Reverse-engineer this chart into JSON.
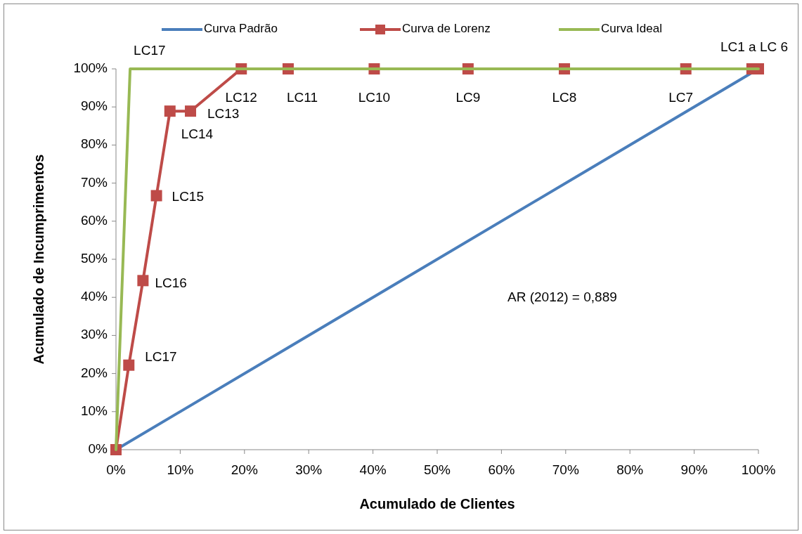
{
  "chart_data": {
    "type": "line",
    "xlabel": "Acumulado de Clientes",
    "ylabel": "Acumulado de Incumprimentos",
    "xlim": [
      0,
      100
    ],
    "ylim": [
      0,
      100
    ],
    "xticks": [
      {
        "value": 0,
        "label": "0%"
      },
      {
        "value": 10,
        "label": "10%"
      },
      {
        "value": 20,
        "label": "20%"
      },
      {
        "value": 30,
        "label": "30%"
      },
      {
        "value": 40,
        "label": "40%"
      },
      {
        "value": 50,
        "label": "50%"
      },
      {
        "value": 60,
        "label": "60%"
      },
      {
        "value": 70,
        "label": "70%"
      },
      {
        "value": 80,
        "label": "80%"
      },
      {
        "value": 90,
        "label": "90%"
      },
      {
        "value": 100,
        "label": "100%"
      }
    ],
    "yticks": [
      {
        "value": 0,
        "label": "0%"
      },
      {
        "value": 10,
        "label": "10%"
      },
      {
        "value": 20,
        "label": "20%"
      },
      {
        "value": 30,
        "label": "30%"
      },
      {
        "value": 40,
        "label": "40%"
      },
      {
        "value": 50,
        "label": "50%"
      },
      {
        "value": 60,
        "label": "60%"
      },
      {
        "value": 70,
        "label": "70%"
      },
      {
        "value": 80,
        "label": "80%"
      },
      {
        "value": 90,
        "label": "90%"
      },
      {
        "value": 100,
        "label": "100%"
      }
    ],
    "grid": false,
    "legend": "top",
    "series": [
      {
        "name": "Curva Padrão",
        "color": "#4a7ebb",
        "marker": "none",
        "x": [
          0,
          100
        ],
        "values": [
          0,
          100
        ]
      },
      {
        "name": "Curva de Lorenz",
        "color": "#be4b48",
        "marker": "square",
        "x": [
          0,
          2,
          4.2,
          6.3,
          8.4,
          11.6,
          19.5,
          26.8,
          40.2,
          54.8,
          69.8,
          88.7,
          99,
          100
        ],
        "values": [
          0,
          22.2,
          44.4,
          66.7,
          88.9,
          88.9,
          100,
          100,
          100,
          100,
          100,
          100,
          100,
          100
        ]
      },
      {
        "name": "Curva Ideal",
        "color": "#98b954",
        "marker": "none",
        "x": [
          0,
          2.2,
          100
        ],
        "values": [
          0,
          100,
          100
        ]
      }
    ],
    "annotations": [
      {
        "text": "LC17",
        "x": 2.2,
        "y": 100
      },
      {
        "text": "LC12",
        "x": 19.5,
        "y": 100
      },
      {
        "text": "LC11",
        "x": 26.8,
        "y": 100
      },
      {
        "text": "LC10",
        "x": 40.2,
        "y": 100
      },
      {
        "text": "LC9",
        "x": 54.8,
        "y": 100
      },
      {
        "text": "LC8",
        "x": 69.8,
        "y": 100
      },
      {
        "text": "LC7",
        "x": 88.7,
        "y": 100
      },
      {
        "text": "LC1 a LC 6",
        "x": 100,
        "y": 100
      },
      {
        "text": "LC13",
        "x": 11.6,
        "y": 88.9
      },
      {
        "text": "LC14",
        "x": 8.4,
        "y": 88.9
      },
      {
        "text": "LC15",
        "x": 6.3,
        "y": 66.7
      },
      {
        "text": "LC16",
        "x": 4.2,
        "y": 44.4
      },
      {
        "text": "LC17",
        "x": 2,
        "y": 22.2
      },
      "AR (2012) =  0,889"
    ]
  }
}
